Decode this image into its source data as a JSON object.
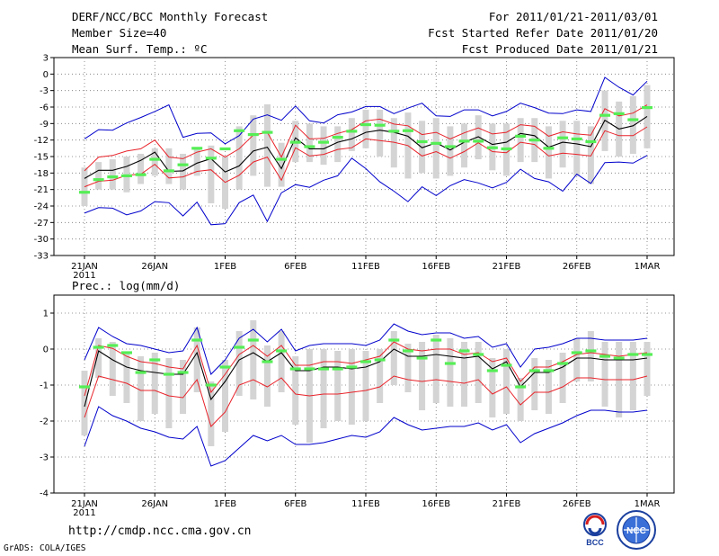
{
  "header": {
    "title": "DERF/NCC/BCC Monthly Forecast",
    "member_size": "Member Size=40",
    "variable": "Mean Surf. Temp.: ºC",
    "period": "For 2011/01/21-2011/03/01",
    "fcst_started": "Fcst Started Refer Date 2011/01/20",
    "fcst_produced": "Fcst Produced Date 2011/01/21"
  },
  "footer": {
    "url": "http://cmdp.ncc.cma.gov.cn",
    "grads": "GrADS: COLA/IGES",
    "logo_bcc_text": "BCC",
    "logo_ncc_text": "NCC"
  },
  "colors": {
    "mean_line": "#000000",
    "inner_band": "#e8232a",
    "outer_band": "#0000cc",
    "box": "#d4d4d4",
    "marker": "#55ee55",
    "grid": "#777777"
  },
  "chart_data": [
    {
      "type": "line",
      "title": "Mean Surf. Temp.: ºC",
      "x_tick_labels": [
        "21JAN",
        "26JAN",
        "1FEB",
        "6FEB",
        "11FEB",
        "16FEB",
        "21FEB",
        "26FEB",
        "1MAR"
      ],
      "x_year_label": "2011",
      "ylim": [
        -33,
        3
      ],
      "y_ticks": [
        3,
        0,
        -3,
        -6,
        -9,
        -12,
        -15,
        -18,
        -21,
        -24,
        -27,
        -30,
        -33
      ],
      "series": [
        {
          "name": "mean",
          "values": [
            -19,
            -17.5,
            -17.5,
            -16.8,
            -15.7,
            -14.2,
            -17.7,
            -17.6,
            -16.2,
            -15.4,
            -17.8,
            -16.7,
            -14,
            -13.3,
            -17.2,
            -11.6,
            -13.6,
            -13.6,
            -12.4,
            -11.8,
            -10.6,
            -10.2,
            -10.6,
            -11.3,
            -13.4,
            -12.5,
            -13.8,
            -12.4,
            -11.4,
            -12.8,
            -12.4,
            -10.8,
            -11.2,
            -13.3,
            -12.4,
            -12.7,
            -13.2,
            -8.4,
            -10,
            -9.4,
            -7.7
          ]
        },
        {
          "name": "inner_upper",
          "values": [
            -17.6,
            -15.1,
            -14.8,
            -14,
            -13.6,
            -12,
            -15.1,
            -15.4,
            -14.2,
            -13.6,
            -15.1,
            -13.6,
            -11.1,
            -10.6,
            -15.1,
            -9.3,
            -11.8,
            -11.7,
            -10.8,
            -10.1,
            -8.5,
            -8.2,
            -9.1,
            -9.4,
            -11,
            -10.6,
            -11.8,
            -10.7,
            -9.8,
            -10.9,
            -10.6,
            -9.2,
            -9.5,
            -11.3,
            -10.5,
            -10.9,
            -11.1,
            -6.3,
            -7.6,
            -7.1,
            -5.6
          ]
        },
        {
          "name": "inner_lower",
          "values": [
            -20.5,
            -19.5,
            -19.3,
            -18.4,
            -18.2,
            -16.4,
            -18.9,
            -18.7,
            -17.7,
            -17.4,
            -19.7,
            -18.4,
            -16,
            -15.1,
            -19.3,
            -13.4,
            -14.9,
            -14.6,
            -13.7,
            -13.4,
            -11.8,
            -12.1,
            -12.4,
            -13,
            -14.9,
            -14.1,
            -15.3,
            -14.1,
            -12.5,
            -14.1,
            -14.3,
            -12.4,
            -12.8,
            -14.9,
            -14.4,
            -14.6,
            -14.9,
            -10.3,
            -11.2,
            -11.2,
            -9.6
          ]
        },
        {
          "name": "outer_upper",
          "values": [
            -11.8,
            -10.1,
            -10.2,
            -8.9,
            -7.9,
            -6.8,
            -5.6,
            -11.5,
            -10.8,
            -10.7,
            -12.7,
            -11.2,
            -8.2,
            -7.4,
            -8.4,
            -5.8,
            -8.5,
            -8.9,
            -7.4,
            -6.9,
            -5.9,
            -5.9,
            -7.2,
            -6.2,
            -5.3,
            -7.6,
            -7.7,
            -6.5,
            -6.5,
            -7.6,
            -6.8,
            -5.3,
            -6.1,
            -7.1,
            -7.2,
            -6.5,
            -6.8,
            -0.6,
            -2.4,
            -3.8,
            -1.3
          ]
        },
        {
          "name": "outer_lower",
          "values": [
            -25.3,
            -24.3,
            -24.4,
            -25.6,
            -24.9,
            -23.2,
            -23.4,
            -25.8,
            -23.3,
            -27.4,
            -27.2,
            -23.4,
            -22,
            -26.8,
            -21.6,
            -20.1,
            -20.6,
            -19.3,
            -18.5,
            -15.3,
            -17.2,
            -19.6,
            -21.3,
            -23.2,
            -20.5,
            -22.1,
            -20.3,
            -19.2,
            -19.8,
            -20.7,
            -19.7,
            -17.3,
            -19,
            -19.6,
            -21.3,
            -18.2,
            -19.9,
            -16.1,
            -16,
            -16.2,
            -14.8
          ]
        },
        {
          "name": "box_upper",
          "values": [
            -17,
            -16,
            -15.5,
            -15,
            -14.5,
            -13.5,
            -13.5,
            -14.5,
            -13.5,
            -13,
            -15,
            -9.5,
            -7.5,
            -5.5,
            -12.5,
            -8.5,
            -9,
            -9.5,
            -9.5,
            -8,
            -6.5,
            -6.5,
            -8,
            -7,
            -8.5,
            -8,
            -9.5,
            -9,
            -7.5,
            -9,
            -9,
            -8,
            -8,
            -9.5,
            -8.5,
            -8.5,
            -9.5,
            -3,
            -5,
            -4,
            -2
          ]
        },
        {
          "name": "box_lower",
          "values": [
            -24,
            -21,
            -21,
            -21.5,
            -20,
            -18.5,
            -20,
            -21,
            -18.5,
            -23.5,
            -24.5,
            -21,
            -18.5,
            -20.5,
            -20.5,
            -16,
            -16,
            -16.5,
            -16,
            -14,
            -13.5,
            -15,
            -17,
            -19,
            -18,
            -19,
            -18.5,
            -17,
            -15.5,
            -17.5,
            -18.5,
            -16,
            -16,
            -19,
            -17,
            -18.5,
            -20,
            -14,
            -15,
            -14.5,
            -13.5
          ]
        },
        {
          "name": "green_marker",
          "values": [
            -21.5,
            -19.2,
            -18.7,
            -18.5,
            -18.3,
            -15.5,
            -17.6,
            -16.5,
            -13.5,
            -15.3,
            -13.6,
            -10.3,
            -11,
            -10.6,
            -15.5,
            -12.4,
            -13.2,
            -12.4,
            -11.5,
            -10.4,
            -9.2,
            -9.3,
            -10.4,
            -10.3,
            -12.3,
            -12.6,
            -13.2,
            -12.2,
            -12.2,
            -13.4,
            -13.6,
            -11.3,
            -12,
            -13.5,
            -11.6,
            -11.8,
            -12.3,
            -7.5,
            -7.2,
            -8.3,
            -6.1
          ]
        }
      ]
    },
    {
      "type": "line",
      "title": "Prec.: log(mm/d)",
      "x_tick_labels": [
        "21JAN",
        "26JAN",
        "1FEB",
        "6FEB",
        "11FEB",
        "16FEB",
        "21FEB",
        "26FEB",
        "1MAR"
      ],
      "x_year_label": "2011",
      "ylim": [
        -4,
        1.5
      ],
      "y_ticks": [
        1,
        0,
        -1,
        -2,
        -3,
        -4
      ],
      "series": [
        {
          "name": "mean",
          "values": [
            -1.6,
            -0.05,
            -0.3,
            -0.5,
            -0.6,
            -0.65,
            -0.7,
            -0.7,
            -0.1,
            -1.4,
            -0.9,
            -0.3,
            -0.1,
            -0.35,
            -0.1,
            -0.6,
            -0.6,
            -0.5,
            -0.5,
            -0.55,
            -0.5,
            -0.35,
            0,
            -0.2,
            -0.2,
            -0.15,
            -0.2,
            -0.25,
            -0.2,
            -0.55,
            -0.35,
            -1.05,
            -0.65,
            -0.65,
            -0.5,
            -0.25,
            -0.25,
            -0.3,
            -0.3,
            -0.3,
            -0.25
          ]
        },
        {
          "name": "inner_upper",
          "values": [
            -1.3,
            0.1,
            0.02,
            -0.2,
            -0.35,
            -0.4,
            -0.5,
            -0.55,
            0.1,
            -1.2,
            -0.7,
            -0.15,
            0.1,
            -0.2,
            0.1,
            -0.45,
            -0.45,
            -0.35,
            -0.35,
            -0.4,
            -0.3,
            -0.2,
            0.2,
            0,
            -0.05,
            0,
            0,
            -0.15,
            -0.1,
            -0.35,
            -0.25,
            -0.9,
            -0.5,
            -0.5,
            -0.35,
            -0.15,
            -0.1,
            -0.15,
            -0.2,
            -0.15,
            -0.1
          ]
        },
        {
          "name": "inner_lower",
          "values": [
            -1.9,
            -0.75,
            -0.85,
            -0.95,
            -1.15,
            -1.15,
            -1.3,
            -1.35,
            -0.85,
            -2.15,
            -1.75,
            -1,
            -0.85,
            -1.05,
            -0.8,
            -1.25,
            -1.3,
            -1.25,
            -1.25,
            -1.2,
            -1.15,
            -1.05,
            -0.75,
            -0.85,
            -0.9,
            -0.85,
            -0.9,
            -0.95,
            -0.85,
            -1.25,
            -1.05,
            -1.55,
            -1.2,
            -1.2,
            -1.05,
            -0.8,
            -0.8,
            -0.85,
            -0.85,
            -0.85,
            -0.75
          ]
        },
        {
          "name": "outer_upper",
          "values": [
            -0.3,
            0.6,
            0.35,
            0.15,
            0.1,
            0,
            -0.1,
            -0.05,
            0.6,
            -0.7,
            -0.3,
            0.3,
            0.55,
            0.2,
            0.55,
            -0.05,
            0.1,
            0.15,
            0.15,
            0.15,
            0.1,
            0.25,
            0.7,
            0.5,
            0.4,
            0.45,
            0.45,
            0.3,
            0.35,
            0.05,
            0.15,
            -0.5,
            0,
            0.05,
            0.15,
            0.3,
            0.3,
            0.25,
            0.25,
            0.25,
            0.3
          ]
        },
        {
          "name": "outer_lower",
          "values": [
            -2.7,
            -1.6,
            -1.85,
            -2,
            -2.2,
            -2.3,
            -2.45,
            -2.5,
            -2.15,
            -3.25,
            -3.1,
            -2.75,
            -2.4,
            -2.55,
            -2.4,
            -2.65,
            -2.65,
            -2.6,
            -2.5,
            -2.4,
            -2.45,
            -2.3,
            -1.9,
            -2.1,
            -2.25,
            -2.2,
            -2.15,
            -2.15,
            -2.05,
            -2.25,
            -2.1,
            -2.6,
            -2.35,
            -2.2,
            -2.05,
            -1.85,
            -1.7,
            -1.7,
            -1.75,
            -1.75,
            -1.7
          ]
        },
        {
          "name": "box_upper",
          "values": [
            -0.6,
            0.3,
            0.2,
            -0.1,
            -0.2,
            -0.1,
            -0.25,
            -0.3,
            0.6,
            -0.9,
            -0.3,
            0.5,
            0.8,
            0.1,
            0.5,
            -0.2,
            0,
            0,
            -0.05,
            0,
            -0.05,
            0,
            0.5,
            0.15,
            0.2,
            0.4,
            0.3,
            0.2,
            0.2,
            -0.25,
            0,
            -0.8,
            -0.25,
            -0.3,
            -0.1,
            0.3,
            0.5,
            0.2,
            0.2,
            0.2,
            0.2
          ]
        },
        {
          "name": "box_lower",
          "values": [
            -2.4,
            -0.8,
            -1.3,
            -1.5,
            -2,
            -1.8,
            -2.2,
            -1.8,
            -1.2,
            -2.7,
            -2.3,
            -1.3,
            -1.4,
            -1.6,
            -1.2,
            -2.1,
            -2.6,
            -2.2,
            -2,
            -2.1,
            -2,
            -1.5,
            -1,
            -1.2,
            -1.7,
            -1.5,
            -1.6,
            -1.6,
            -1.5,
            -1.9,
            -1.8,
            -2,
            -1.7,
            -1.8,
            -1.5,
            -0.9,
            -0.9,
            -1.6,
            -1.9,
            -1.7,
            -1.3
          ]
        },
        {
          "name": "green_marker",
          "values": [
            -1.05,
            0.05,
            0.1,
            -0.1,
            -0.65,
            -0.3,
            -0.7,
            -0.65,
            0.25,
            -1,
            -0.5,
            0.05,
            0.25,
            -0.35,
            -0.05,
            -0.55,
            -0.55,
            -0.55,
            -0.55,
            -0.5,
            -0.35,
            -0.3,
            0.25,
            -0.05,
            -0.25,
            0.25,
            -0.4,
            -0.05,
            -0.15,
            -0.6,
            -0.45,
            -1.05,
            -0.6,
            -0.6,
            -0.4,
            -0.1,
            -0.05,
            -0.2,
            -0.25,
            -0.15,
            -0.15
          ]
        }
      ]
    }
  ]
}
